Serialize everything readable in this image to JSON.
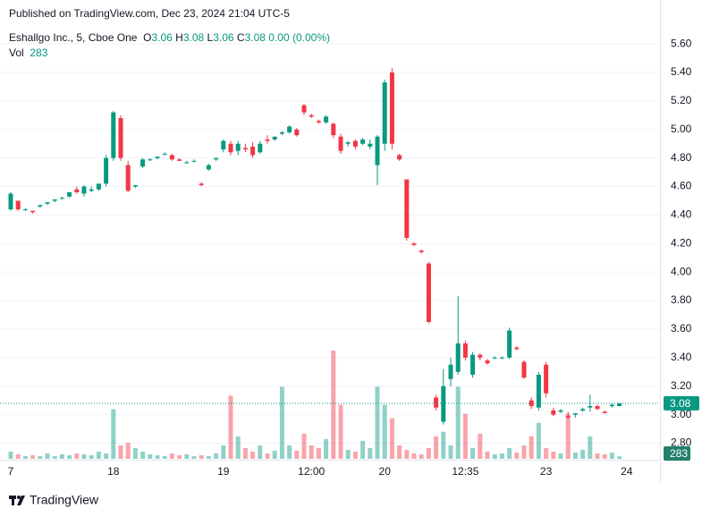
{
  "chart_data": {
    "type": "candlestick",
    "published": "Published on TradingView.com, Dec 23, 2024 21:04 UTC-5",
    "title": "Eshallgo Inc., 5, Cboe One",
    "ohlc_labels": [
      "O",
      "H",
      "L",
      "C"
    ],
    "change": "0.00 (0.00%)",
    "volume_label": "Vol",
    "footer": "TradingView",
    "up_color": "#089981",
    "down_color": "#f23645",
    "categories": [
      "7",
      null,
      null,
      null,
      null,
      null,
      null,
      null,
      null,
      null,
      null,
      null,
      null,
      null,
      "18",
      null,
      null,
      null,
      null,
      null,
      null,
      null,
      null,
      null,
      null,
      null,
      null,
      null,
      null,
      "19",
      null,
      null,
      null,
      null,
      null,
      null,
      null,
      null,
      null,
      null,
      null,
      "12:00",
      null,
      null,
      null,
      null,
      null,
      null,
      null,
      null,
      null,
      "20",
      null,
      null,
      null,
      null,
      null,
      null,
      null,
      null,
      null,
      null,
      "12:35",
      null,
      null,
      null,
      null,
      null,
      null,
      null,
      null,
      null,
      null,
      "23",
      null,
      null,
      null,
      null,
      null,
      null,
      null,
      null,
      null,
      null,
      "24"
    ],
    "open": [
      4.44,
      4.5,
      4.44,
      4.43,
      4.46,
      4.48,
      4.5,
      4.52,
      4.53,
      4.58,
      4.55,
      4.57,
      4.58,
      4.62,
      4.8,
      5.08,
      4.75,
      4.6,
      4.74,
      4.79,
      4.8,
      4.83,
      4.82,
      4.79,
      4.77,
      4.78,
      4.62,
      4.72,
      4.79,
      4.86,
      4.9,
      4.85,
      4.87,
      4.88,
      4.84,
      4.93,
      4.93,
      4.97,
      4.98,
      5.0,
      5.17,
      5.1,
      5.06,
      5.05,
      5.04,
      4.95,
      4.9,
      4.92,
      4.9,
      4.88,
      4.75,
      4.9,
      5.4,
      4.82,
      4.65,
      4.2,
      4.15,
      4.06,
      3.12,
      2.95,
      3.25,
      3.3,
      3.5,
      3.28,
      3.42,
      3.38,
      3.4,
      3.4,
      3.4,
      3.47,
      3.37,
      3.1,
      3.05,
      3.35,
      3.03,
      3.02,
      2.99,
      3.0,
      3.03,
      3.05,
      3.06,
      3.02,
      3.06,
      3.06,
      null
    ],
    "high": [
      4.56,
      4.5,
      4.45,
      4.43,
      4.47,
      4.49,
      4.51,
      4.53,
      4.56,
      4.6,
      4.61,
      4.6,
      4.62,
      4.82,
      5.13,
      5.1,
      4.78,
      4.61,
      4.8,
      4.8,
      4.81,
      4.84,
      4.83,
      4.8,
      4.78,
      4.79,
      4.63,
      4.76,
      4.8,
      4.93,
      4.92,
      4.92,
      4.9,
      4.91,
      4.92,
      4.96,
      4.95,
      4.99,
      5.03,
      5.01,
      5.18,
      5.11,
      5.07,
      5.1,
      5.05,
      4.97,
      4.92,
      4.93,
      4.94,
      4.93,
      4.96,
      5.35,
      5.43,
      4.83,
      4.65,
      4.21,
      4.16,
      4.07,
      3.14,
      3.32,
      3.4,
      3.83,
      3.52,
      3.44,
      3.43,
      3.39,
      3.41,
      3.41,
      3.61,
      3.48,
      3.38,
      3.12,
      3.3,
      3.37,
      3.05,
      3.04,
      3.02,
      3.01,
      3.05,
      3.14,
      3.07,
      3.03,
      3.08,
      3.08,
      null
    ],
    "low": [
      4.43,
      4.43,
      4.43,
      4.41,
      4.45,
      4.47,
      4.49,
      4.51,
      4.52,
      4.55,
      4.53,
      4.56,
      4.57,
      4.6,
      4.78,
      4.78,
      4.56,
      4.59,
      4.73,
      4.78,
      4.79,
      4.82,
      4.78,
      4.78,
      4.76,
      4.77,
      4.6,
      4.71,
      4.78,
      4.84,
      4.82,
      4.82,
      4.84,
      4.8,
      4.83,
      4.9,
      4.92,
      4.96,
      4.97,
      4.95,
      5.1,
      5.08,
      5.04,
      5.04,
      4.94,
      4.83,
      4.88,
      4.86,
      4.89,
      4.86,
      4.61,
      4.85,
      4.86,
      4.78,
      4.22,
      4.18,
      4.13,
      3.64,
      3.03,
      2.93,
      3.2,
      3.28,
      3.38,
      3.26,
      3.38,
      3.35,
      3.39,
      3.39,
      3.39,
      3.45,
      3.25,
      3.04,
      3.03,
      3.12,
      2.99,
      3.01,
      2.97,
      2.98,
      3.02,
      3.02,
      3.03,
      3.01,
      3.05,
      3.06,
      null
    ],
    "close": [
      4.55,
      4.44,
      4.44,
      4.42,
      4.47,
      4.49,
      4.51,
      4.52,
      4.56,
      4.56,
      4.6,
      4.58,
      4.62,
      4.8,
      5.12,
      4.8,
      4.57,
      4.61,
      4.79,
      4.79,
      4.81,
      4.83,
      4.79,
      4.78,
      4.77,
      4.78,
      4.61,
      4.75,
      4.8,
      4.92,
      4.84,
      4.9,
      4.86,
      4.82,
      4.9,
      4.92,
      4.95,
      4.98,
      5.02,
      4.96,
      5.12,
      5.09,
      5.05,
      5.09,
      4.96,
      4.85,
      4.91,
      4.88,
      4.93,
      4.9,
      4.95,
      5.33,
      4.9,
      4.79,
      4.24,
      4.19,
      4.14,
      3.65,
      3.05,
      3.2,
      3.35,
      3.5,
      3.4,
      3.42,
      3.4,
      3.36,
      3.4,
      3.4,
      3.59,
      3.46,
      3.26,
      3.06,
      3.28,
      3.15,
      3.0,
      3.03,
      2.98,
      3.01,
      3.04,
      3.06,
      3.04,
      3.01,
      3.07,
      3.08,
      null
    ],
    "volume": [
      800,
      500,
      300,
      400,
      300,
      600,
      300,
      500,
      400,
      600,
      500,
      400,
      800,
      600,
      5500,
      1500,
      1800,
      1200,
      800,
      500,
      400,
      300,
      600,
      400,
      500,
      300,
      400,
      300,
      600,
      1500,
      7000,
      2500,
      1200,
      800,
      1500,
      600,
      900,
      8000,
      1500,
      900,
      2800,
      1500,
      1200,
      2200,
      12000,
      6000,
      1000,
      800,
      2000,
      1200,
      8000,
      6000,
      4500,
      1500,
      1000,
      600,
      500,
      1200,
      2500,
      3000,
      1500,
      8000,
      5000,
      1200,
      2800,
      800,
      500,
      600,
      1200,
      700,
      1500,
      2500,
      4000,
      1200,
      800,
      600,
      5000,
      700,
      1000,
      2500,
      600,
      500,
      700,
      283,
      null
    ],
    "ylim": [
      2.69,
      5.72
    ],
    "yticks": [
      {
        "value": 2.8,
        "label": "2.80"
      },
      {
        "value": 3,
        "label": "3.00"
      },
      {
        "value": 3.2,
        "label": "3.20"
      },
      {
        "value": 3.4,
        "label": "3.40"
      },
      {
        "value": 3.6,
        "label": "3.60"
      },
      {
        "value": 3.8,
        "label": "3.80"
      },
      {
        "value": 4,
        "label": "4.00"
      },
      {
        "value": 4.2,
        "label": "4.20"
      },
      {
        "value": 4.4,
        "label": "4.40"
      },
      {
        "value": 4.6,
        "label": "4.60"
      },
      {
        "value": 4.8,
        "label": "4.80"
      },
      {
        "value": 5,
        "label": "5.00"
      },
      {
        "value": 5.2,
        "label": "5.20"
      },
      {
        "value": 5.4,
        "label": "5.40"
      },
      {
        "value": 5.6,
        "label": "5.60"
      }
    ],
    "grid": true
  }
}
